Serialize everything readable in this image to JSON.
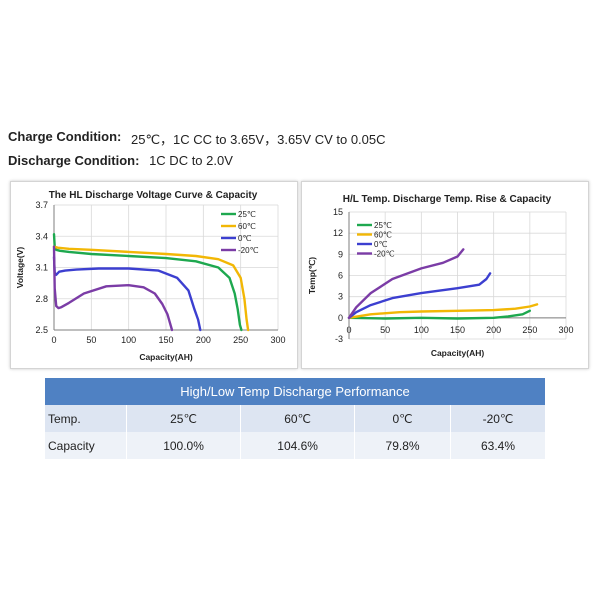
{
  "conditions": {
    "charge_label": "Charge Condition:",
    "charge_value": "25℃，1C CC to 3.65V，3.65V CV to 0.05C",
    "discharge_label": "Discharge Condition:",
    "discharge_value": "1C DC to 2.0V"
  },
  "colors": {
    "25℃": "#1ea84f",
    "60℃": "#f2b705",
    "0℃": "#3c3fd0",
    "-20℃": "#7b3ca6",
    "table_header_bg": "#4f81c3"
  },
  "chart_data": [
    {
      "type": "line",
      "title": "The HL Discharge Voltage Curve & Capacity",
      "xlabel": "Capacity(AH)",
      "ylabel": "Voltage(V)",
      "xlim": [
        0,
        300
      ],
      "ylim": [
        2.5,
        3.7
      ],
      "xticks": [
        0,
        50,
        100,
        150,
        200,
        250,
        300
      ],
      "yticks": [
        2.5,
        2.8,
        3.1,
        3.4,
        3.7
      ],
      "grid": true,
      "legend": "top-right",
      "series": [
        {
          "name": "25℃",
          "x": [
            0,
            1,
            3,
            8,
            20,
            50,
            100,
            150,
            190,
            220,
            235,
            242,
            246,
            249,
            251
          ],
          "y": [
            3.42,
            3.3,
            3.27,
            3.26,
            3.25,
            3.23,
            3.21,
            3.19,
            3.16,
            3.1,
            3.0,
            2.85,
            2.7,
            2.55,
            2.5
          ]
        },
        {
          "name": "60℃",
          "x": [
            0,
            5,
            20,
            50,
            100,
            150,
            190,
            220,
            240,
            250,
            255,
            258,
            260
          ],
          "y": [
            3.3,
            3.29,
            3.28,
            3.27,
            3.25,
            3.23,
            3.21,
            3.18,
            3.12,
            3.0,
            2.8,
            2.6,
            2.5
          ]
        },
        {
          "name": "0℃",
          "x": [
            0,
            1,
            3,
            7,
            15,
            30,
            60,
            100,
            140,
            165,
            180,
            188,
            193,
            196
          ],
          "y": [
            3.2,
            3.05,
            3.03,
            3.06,
            3.07,
            3.08,
            3.09,
            3.09,
            3.07,
            3.0,
            2.88,
            2.7,
            2.6,
            2.5
          ]
        },
        {
          "name": "-20℃",
          "x": [
            0,
            1,
            3,
            6,
            10,
            20,
            40,
            70,
            100,
            120,
            135,
            145,
            152,
            156,
            158
          ],
          "y": [
            3.3,
            2.9,
            2.73,
            2.71,
            2.72,
            2.76,
            2.85,
            2.92,
            2.93,
            2.91,
            2.85,
            2.75,
            2.65,
            2.55,
            2.5
          ]
        }
      ]
    },
    {
      "type": "line",
      "title": "H/L Temp. Discharge Temp. Rise & Capacity",
      "xlabel": "Capacity(AH)",
      "ylabel": "Temp(℃)",
      "xlim": [
        0,
        300
      ],
      "ylim": [
        -3,
        15
      ],
      "xticks": [
        0,
        50,
        100,
        150,
        200,
        250,
        300
      ],
      "yticks": [
        -3,
        0,
        3,
        6,
        9,
        12,
        15
      ],
      "grid": true,
      "legend": "top-left",
      "series": [
        {
          "name": "25℃",
          "x": [
            0,
            50,
            100,
            150,
            200,
            220,
            240,
            250
          ],
          "y": [
            0,
            -0.1,
            0,
            -0.1,
            0,
            0.2,
            0.5,
            1.0
          ]
        },
        {
          "name": "60℃",
          "x": [
            0,
            30,
            70,
            100,
            150,
            200,
            230,
            250,
            260
          ],
          "y": [
            0,
            0.5,
            0.8,
            0.9,
            1.0,
            1.1,
            1.3,
            1.6,
            1.9
          ]
        },
        {
          "name": "0℃",
          "x": [
            0,
            10,
            30,
            60,
            100,
            150,
            180,
            190,
            195
          ],
          "y": [
            0,
            0.8,
            1.8,
            2.8,
            3.5,
            4.2,
            4.7,
            5.5,
            6.3
          ]
        },
        {
          "name": "-20℃",
          "x": [
            0,
            10,
            30,
            60,
            100,
            130,
            150,
            158
          ],
          "y": [
            0,
            1.5,
            3.5,
            5.5,
            7.0,
            7.8,
            8.7,
            9.7
          ]
        }
      ]
    },
    {
      "type": "table",
      "title": "High/Low Temp  Discharge Performance",
      "columns": [
        "Temp.",
        "25℃",
        "60℃",
        "0℃",
        "-20℃"
      ],
      "rows": [
        [
          "Capacity",
          "100.0%",
          "104.6%",
          "79.8%",
          "63.4%"
        ]
      ]
    }
  ]
}
